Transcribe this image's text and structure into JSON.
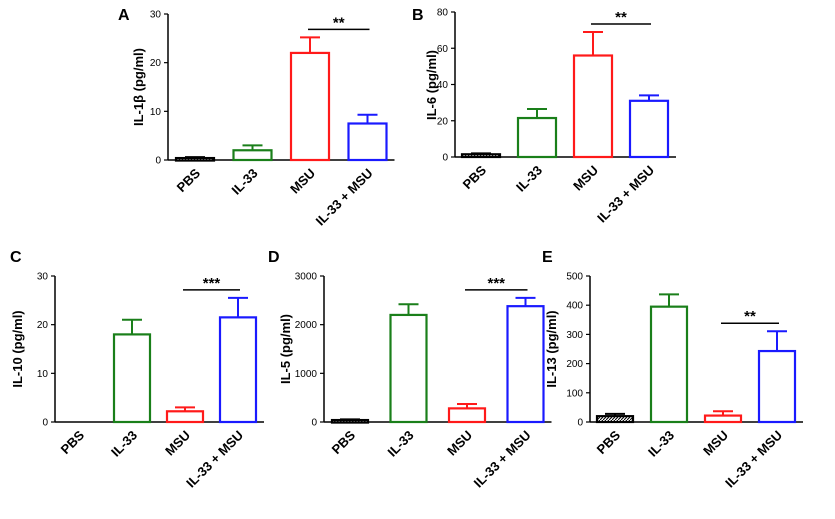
{
  "colors": {
    "PBS": "#000000",
    "IL-33": "#1a7f1a",
    "MSU": "#ff1a1a",
    "IL-33 + MSU": "#1a1aff"
  },
  "chart_data": [
    {
      "panel": "A",
      "type": "bar",
      "ylabel": "IL-1β (pg/ml)",
      "ylim": [
        0,
        30
      ],
      "yticks": [
        "0",
        "10",
        "20",
        "30"
      ],
      "categories": [
        "PBS",
        "IL-33",
        "MSU",
        "IL-33 + MSU"
      ],
      "values": [
        0.4,
        2.0,
        22.0,
        7.5
      ],
      "errors": [
        0.2,
        1.0,
        3.2,
        1.8
      ],
      "hatched": [
        true,
        false,
        false,
        false
      ],
      "significance": {
        "label": "**",
        "from": 2,
        "to": 3
      }
    },
    {
      "panel": "B",
      "type": "bar",
      "ylabel": "IL-6 (pg/ml)",
      "ylim": [
        0,
        80
      ],
      "yticks": [
        "0",
        "20",
        "40",
        "60",
        "80"
      ],
      "categories": [
        "PBS",
        "IL-33",
        "MSU",
        "IL-33 + MSU"
      ],
      "values": [
        1.5,
        21.5,
        56.0,
        31.0
      ],
      "errors": [
        0.5,
        5.0,
        13.0,
        3.0
      ],
      "hatched": [
        true,
        false,
        false,
        false
      ],
      "significance": {
        "label": "**",
        "from": 2,
        "to": 3
      }
    },
    {
      "panel": "C",
      "type": "bar",
      "ylabel": "IL-10 (pg/ml)",
      "ylim": [
        0,
        30
      ],
      "yticks": [
        "0",
        "10",
        "20",
        "30"
      ],
      "categories": [
        "PBS",
        "IL-33",
        "MSU",
        "IL-33 + MSU"
      ],
      "values": [
        0,
        18.0,
        2.2,
        21.5
      ],
      "errors": [
        0,
        3.0,
        0.8,
        4.0
      ],
      "hatched": [
        false,
        false,
        false,
        false
      ],
      "significance": {
        "label": "***",
        "from": 2,
        "to": 3
      }
    },
    {
      "panel": "D",
      "type": "bar",
      "ylabel": "IL-5 (pg/ml)",
      "ylim": [
        0,
        3000
      ],
      "yticks": [
        "0",
        "1000",
        "2000",
        "3000"
      ],
      "categories": [
        "PBS",
        "IL-33",
        "MSU",
        "IL-33 + MSU"
      ],
      "values": [
        40,
        2200,
        280,
        2380
      ],
      "errors": [
        15,
        220,
        90,
        170
      ],
      "hatched": [
        true,
        false,
        false,
        false
      ],
      "significance": {
        "label": "***",
        "from": 2,
        "to": 3
      }
    },
    {
      "panel": "E",
      "type": "bar",
      "ylabel": "IL-13 (pg/ml)",
      "ylim": [
        0,
        500
      ],
      "yticks": [
        "0",
        "100",
        "200",
        "300",
        "400",
        "500"
      ],
      "categories": [
        "PBS",
        "IL-33",
        "MSU",
        "IL-33 + MSU"
      ],
      "values": [
        20,
        395,
        22,
        243
      ],
      "errors": [
        8,
        42,
        15,
        68
      ],
      "hatched": [
        true,
        false,
        false,
        false
      ],
      "significance": {
        "label": "**",
        "from": 2,
        "to": 3
      }
    }
  ]
}
